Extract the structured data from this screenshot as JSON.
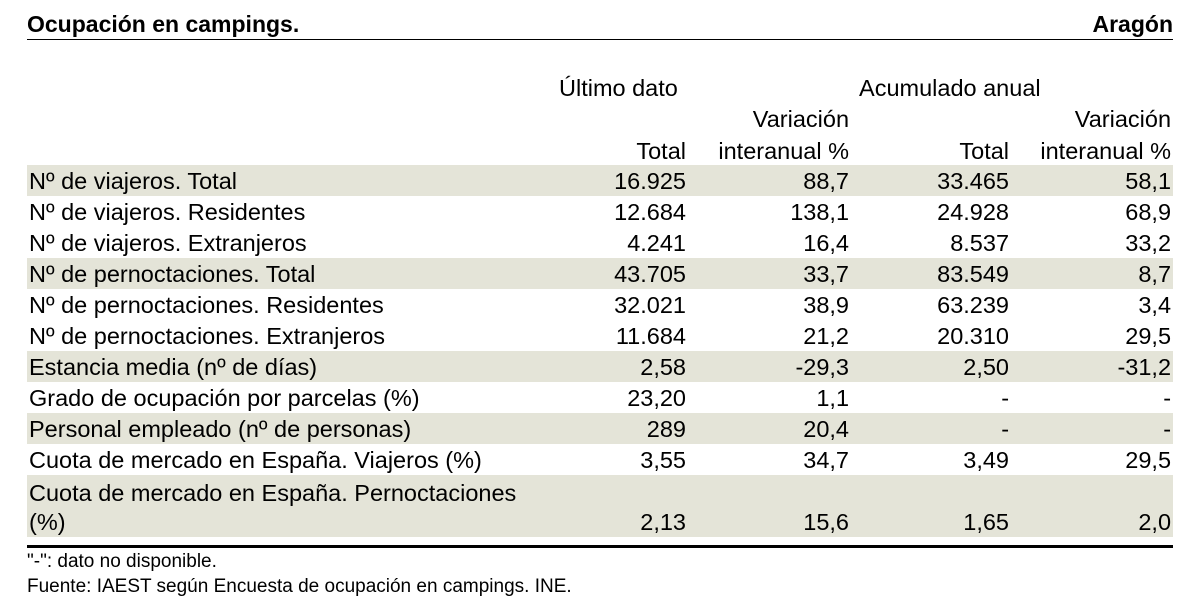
{
  "header": {
    "title": "Ocupación en campings.",
    "region": "Aragón"
  },
  "table": {
    "group_headers": [
      "Último dato",
      "Acumulado anual"
    ],
    "variation_label": "Variación",
    "total_label": "Total",
    "interannual_label": "interanual %",
    "rows": [
      {
        "label": "Nº de viajeros. Total",
        "values": [
          "16.925",
          "88,7",
          "33.465",
          "58,1"
        ],
        "shaded": true
      },
      {
        "label": "Nº de viajeros. Residentes",
        "values": [
          "12.684",
          "138,1",
          "24.928",
          "68,9"
        ],
        "shaded": false
      },
      {
        "label": "Nº de viajeros. Extranjeros",
        "values": [
          "4.241",
          "16,4",
          "8.537",
          "33,2"
        ],
        "shaded": false
      },
      {
        "label": "Nº de pernoctaciones. Total",
        "values": [
          "43.705",
          "33,7",
          "83.549",
          "8,7"
        ],
        "shaded": true
      },
      {
        "label": "Nº de pernoctaciones. Residentes",
        "values": [
          "32.021",
          "38,9",
          "63.239",
          "3,4"
        ],
        "shaded": false
      },
      {
        "label": "Nº de pernoctaciones. Extranjeros",
        "values": [
          "11.684",
          "21,2",
          "20.310",
          "29,5"
        ],
        "shaded": false
      },
      {
        "label": "Estancia media (nº de días)",
        "values": [
          "2,58",
          "-29,3",
          "2,50",
          "-31,2"
        ],
        "shaded": true
      },
      {
        "label": "Grado de ocupación por parcelas (%)",
        "values": [
          "23,20",
          "1,1",
          "-",
          "-"
        ],
        "shaded": false
      },
      {
        "label": "Personal empleado (nº de personas)",
        "values": [
          "289",
          "20,4",
          "-",
          "-"
        ],
        "shaded": true
      },
      {
        "label": "Cuota de mercado en España. Viajeros (%)",
        "values": [
          "3,55",
          "34,7",
          "3,49",
          "29,5"
        ],
        "shaded": false
      },
      {
        "label": "Cuota de mercado en España. Pernoctaciones (%)",
        "values": [
          "2,13",
          "15,6",
          "1,65",
          "2,0"
        ],
        "shaded": true
      }
    ]
  },
  "notes": {
    "unavailable": "\"-\": dato no disponible.",
    "source": "Fuente: IAEST según Encuesta de ocupación en campings. INE."
  }
}
